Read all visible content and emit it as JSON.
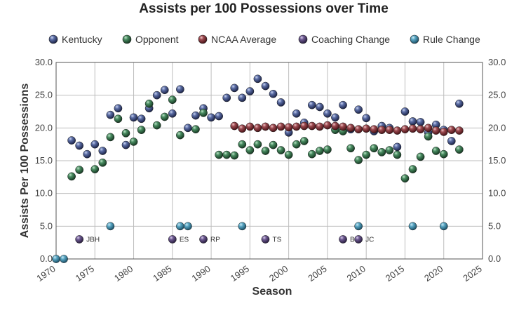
{
  "chart_data": {
    "type": "scatter",
    "title": "Assists per 100 Possessions over Time",
    "xlabel": "Season",
    "ylabel": "Assists Per 100 Possessions",
    "xlim": [
      1970,
      2025
    ],
    "ylim": [
      0,
      30
    ],
    "xticks": [
      "1970",
      "1975",
      "1980",
      "1985",
      "1990",
      "1995",
      "2000",
      "2005",
      "2010",
      "2015",
      "2020",
      "2025"
    ],
    "yticks": [
      "0.0",
      "5.0",
      "10.0",
      "15.0",
      "20.0",
      "25.0",
      "30.0"
    ],
    "grid": true,
    "legend_position": "top",
    "colors": {
      "Kentucky": "#2e3d6e",
      "Opponent": "#2f6b45",
      "NCAA Average": "#7a2b30",
      "Coaching Change": "#4f3d6b",
      "Rule Change": "#3b8aa8"
    },
    "series": [
      {
        "name": "Kentucky",
        "x": [
          1972,
          1973,
          1974,
          1975,
          1976,
          1977,
          1978,
          1979,
          1980,
          1981,
          1982,
          1983,
          1984,
          1985,
          1986,
          1987,
          1988,
          1989,
          1990,
          1991,
          1992,
          1993,
          1994,
          1995,
          1996,
          1997,
          1998,
          1999,
          2000,
          2001,
          2002,
          2003,
          2004,
          2005,
          2006,
          2007,
          2008,
          2009,
          2010,
          2011,
          2012,
          2013,
          2014,
          2015,
          2016,
          2017,
          2018,
          2019,
          2020,
          2021,
          2022
        ],
        "y": [
          18.1,
          17.3,
          16.0,
          17.5,
          16.5,
          22.0,
          23.0,
          17.4,
          21.6,
          21.4,
          23.0,
          25.0,
          25.8,
          22.2,
          25.9,
          20.0,
          21.9,
          23.0,
          21.6,
          21.8,
          24.6,
          26.1,
          24.6,
          25.6,
          27.5,
          26.4,
          25.2,
          23.9,
          19.3,
          22.2,
          20.8,
          23.5,
          23.2,
          22.2,
          21.6,
          23.5,
          19.8,
          22.8,
          21.5,
          19.5,
          20.3,
          20.0,
          17.1,
          22.5,
          21.0,
          20.9,
          19.3,
          20.5,
          19.7,
          18.0,
          23.7
        ]
      },
      {
        "name": "Opponent",
        "x": [
          1972,
          1973,
          1975,
          1976,
          1977,
          1978,
          1979,
          1980,
          1981,
          1982,
          1983,
          1984,
          1985,
          1986,
          1988,
          1989,
          1991,
          1992,
          1993,
          1994,
          1995,
          1996,
          1997,
          1998,
          1999,
          2000,
          2001,
          2002,
          2003,
          2004,
          2005,
          2006,
          2007,
          2008,
          2009,
          2010,
          2011,
          2012,
          2013,
          2014,
          2015,
          2016,
          2017,
          2018,
          2019,
          2020,
          2022
        ],
        "y": [
          12.6,
          13.6,
          13.7,
          14.7,
          18.6,
          21.4,
          19.2,
          17.9,
          19.7,
          23.7,
          20.4,
          21.7,
          24.3,
          18.9,
          19.8,
          22.3,
          15.9,
          15.9,
          15.8,
          17.5,
          16.6,
          17.5,
          16.5,
          17.4,
          16.6,
          15.9,
          17.5,
          18.0,
          16.0,
          16.5,
          16.7,
          19.7,
          19.5,
          16.9,
          15.1,
          15.9,
          16.9,
          16.3,
          16.6,
          15.9,
          12.3,
          13.7,
          15.6,
          18.7,
          16.5,
          16.0,
          16.7
        ]
      },
      {
        "name": "NCAA Average",
        "x": [
          1993,
          1994,
          1995,
          1996,
          1997,
          1998,
          1999,
          2000,
          2001,
          2002,
          2003,
          2004,
          2005,
          2006,
          2007,
          2008,
          2009,
          2010,
          2011,
          2012,
          2013,
          2014,
          2015,
          2016,
          2017,
          2018,
          2019,
          2020,
          2021,
          2022
        ],
        "y": [
          20.3,
          19.9,
          20.2,
          20.0,
          20.2,
          20.0,
          20.2,
          20.1,
          20.2,
          20.3,
          20.3,
          20.2,
          20.4,
          20.3,
          20.2,
          20.0,
          19.8,
          19.9,
          19.8,
          19.7,
          19.7,
          19.6,
          19.8,
          19.9,
          19.8,
          20.0,
          19.6,
          19.4,
          19.7,
          19.6
        ]
      },
      {
        "name": "Coaching Change",
        "x": [
          1973,
          1985,
          1989,
          1997,
          2007,
          2009
        ],
        "y": [
          3.0,
          3.0,
          3.0,
          3.0,
          3.0,
          3.0
        ],
        "labels": [
          "JBH",
          "ES",
          "RP",
          "TS",
          "BG",
          "JC"
        ]
      },
      {
        "name": "Rule Change",
        "x": [
          1970,
          1971,
          1977,
          1986,
          1987,
          1994,
          2009,
          2016,
          2020
        ],
        "y": [
          0.0,
          0.0,
          5.0,
          5.0,
          5.0,
          5.0,
          5.0,
          5.0,
          5.0
        ]
      }
    ]
  }
}
